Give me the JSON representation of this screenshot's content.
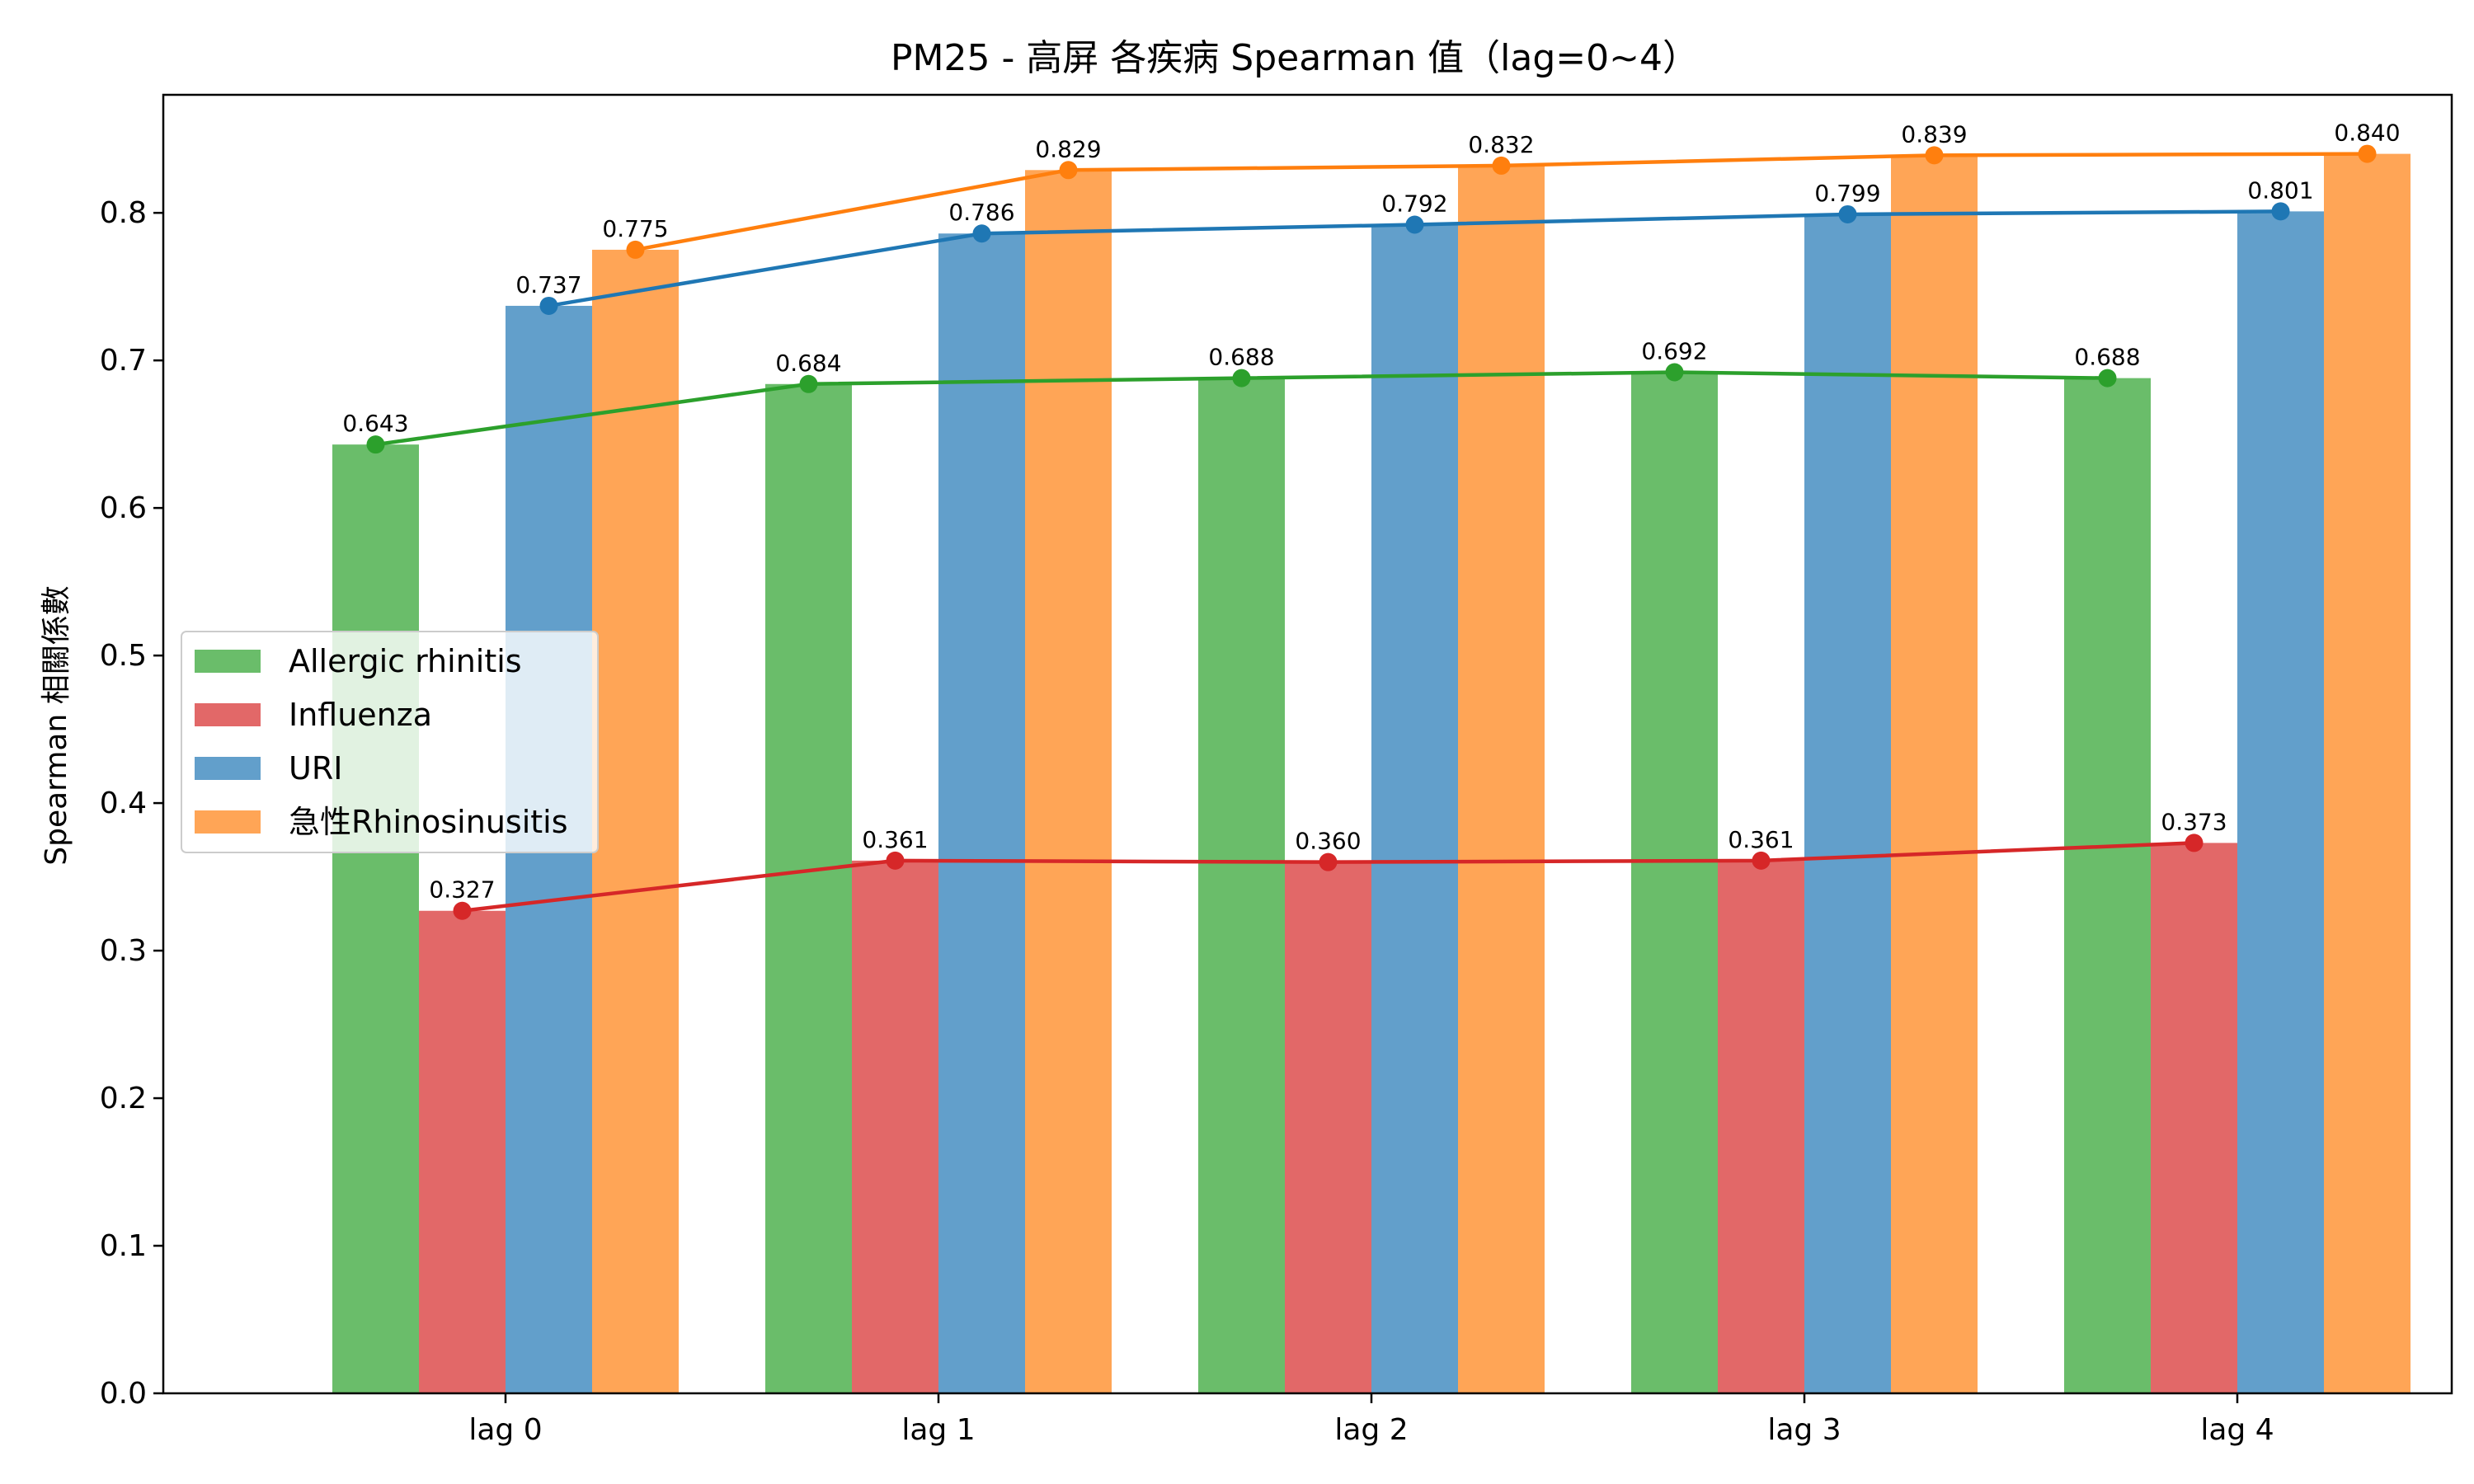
{
  "chart_data": {
    "type": "bar",
    "title": "PM25 - 高屏 各疾病 Spearman 值（lag=0~4）",
    "xlabel": "",
    "ylabel": "Spearman 相關係數",
    "categories": [
      "lag 0",
      "lag 1",
      "lag 2",
      "lag 3",
      "lag 4"
    ],
    "ylim": [
      0,
      0.88
    ],
    "yticks": [
      0.0,
      0.1,
      0.2,
      0.3,
      0.4,
      0.5,
      0.6,
      0.7,
      0.8
    ],
    "ytick_labels": [
      "0.0",
      "0.1",
      "0.2",
      "0.3",
      "0.4",
      "0.5",
      "0.6",
      "0.7",
      "0.8"
    ],
    "grid": false,
    "legend_position": "center-left",
    "overlay": "line-with-markers",
    "series": [
      {
        "name": "Allergic rhinitis",
        "bar_color": "#6abd6a",
        "line_color": "#2ca02c",
        "values": [
          0.643,
          0.684,
          0.688,
          0.692,
          0.688
        ],
        "labels": [
          "0.643",
          "0.684",
          "0.688",
          "0.692",
          "0.688"
        ]
      },
      {
        "name": "Influenza",
        "bar_color": "#e26868",
        "line_color": "#d62728",
        "values": [
          0.327,
          0.361,
          0.36,
          0.361,
          0.373
        ],
        "labels": [
          "0.327",
          "0.361",
          "0.360",
          "0.361",
          "0.373"
        ]
      },
      {
        "name": "URI",
        "bar_color": "#629fcb",
        "line_color": "#1f77b4",
        "values": [
          0.737,
          0.786,
          0.792,
          0.799,
          0.801
        ],
        "labels": [
          "0.737",
          "0.786",
          "0.792",
          "0.799",
          "0.801"
        ]
      },
      {
        "name": "急性Rhinosinusitis",
        "bar_color": "#ffa556",
        "line_color": "#ff7f0e",
        "values": [
          0.775,
          0.829,
          0.832,
          0.839,
          0.84
        ],
        "labels": [
          "0.775",
          "0.829",
          "0.832",
          "0.839",
          "0.840"
        ]
      }
    ]
  }
}
